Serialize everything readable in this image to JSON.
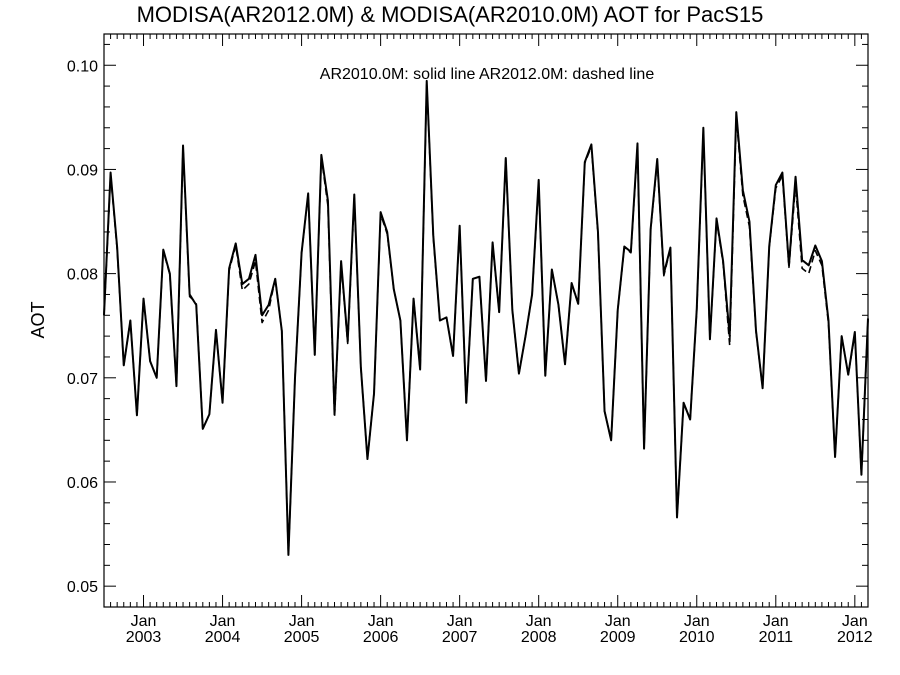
{
  "chart_data": {
    "type": "line",
    "title": "MODISA(AR2012.0M) & MODISA(AR2010.0M)  AOT for PacS15",
    "ylabel": "AOT",
    "xlabel": "",
    "annotation": "AR2010.0M: solid line   AR2012.0M: dashed line",
    "xlim": [
      "2002-07",
      "2012-03"
    ],
    "ylim": [
      0.048,
      0.103
    ],
    "grid": false,
    "legend": "none",
    "y_ticks": [
      "0.05",
      "0.06",
      "0.07",
      "0.08",
      "0.09",
      "0.10"
    ],
    "x_ticks": [
      {
        "month": "Jan",
        "year": "2003"
      },
      {
        "month": "Jan",
        "year": "2004"
      },
      {
        "month": "Jan",
        "year": "2005"
      },
      {
        "month": "Jan",
        "year": "2006"
      },
      {
        "month": "Jan",
        "year": "2007"
      },
      {
        "month": "Jan",
        "year": "2008"
      },
      {
        "month": "Jan",
        "year": "2009"
      },
      {
        "month": "Jan",
        "year": "2010"
      },
      {
        "month": "Jan",
        "year": "2011"
      },
      {
        "month": "Jan",
        "year": "2012"
      }
    ],
    "series": [
      {
        "name": "AR2010.0M",
        "style": "solid",
        "color": "#000000",
        "x": [
          "2002-07",
          "2002-08",
          "2002-09",
          "2002-10",
          "2002-11",
          "2002-12",
          "2003-01",
          "2003-02",
          "2003-03",
          "2003-04",
          "2003-05",
          "2003-06",
          "2003-07",
          "2003-08",
          "2003-09",
          "2003-10",
          "2003-11",
          "2003-12",
          "2004-01",
          "2004-02",
          "2004-03",
          "2004-04",
          "2004-05",
          "2004-06",
          "2004-07",
          "2004-08",
          "2004-09",
          "2004-10",
          "2004-11",
          "2004-12",
          "2005-01",
          "2005-02",
          "2005-03",
          "2005-04",
          "2005-05",
          "2005-06",
          "2005-07",
          "2005-08",
          "2005-09",
          "2005-10",
          "2005-11",
          "2005-12",
          "2006-01",
          "2006-02",
          "2006-03",
          "2006-04",
          "2006-05",
          "2006-06",
          "2006-07",
          "2006-08",
          "2006-09",
          "2006-10",
          "2006-11",
          "2006-12",
          "2007-01",
          "2007-02",
          "2007-03",
          "2007-04",
          "2007-05",
          "2007-06",
          "2007-07",
          "2007-08",
          "2007-09",
          "2007-10",
          "2007-11",
          "2007-12",
          "2008-01",
          "2008-02",
          "2008-03",
          "2008-04",
          "2008-05",
          "2008-06",
          "2008-07",
          "2008-08",
          "2008-09",
          "2008-10",
          "2008-11",
          "2008-12",
          "2009-01",
          "2009-02",
          "2009-03",
          "2009-04",
          "2009-05",
          "2009-06",
          "2009-07",
          "2009-08",
          "2009-09",
          "2009-10",
          "2009-11",
          "2009-12",
          "2010-01",
          "2010-02",
          "2010-03",
          "2010-04",
          "2010-05",
          "2010-06",
          "2010-07",
          "2010-08",
          "2010-09",
          "2010-10",
          "2010-11",
          "2010-12",
          "2011-01",
          "2011-02",
          "2011-03",
          "2011-04",
          "2011-05",
          "2011-06",
          "2011-07",
          "2011-08",
          "2011-09",
          "2011-10",
          "2011-11",
          "2011-12",
          "2012-01",
          "2012-02",
          "2012-03"
        ],
        "values": [
          0.076,
          0.0897,
          0.0825,
          0.0712,
          0.0755,
          0.0664,
          0.0776,
          0.0716,
          0.07,
          0.0823,
          0.08,
          0.0692,
          0.0923,
          0.078,
          0.077,
          0.0651,
          0.0665,
          0.0746,
          0.0676,
          0.0805,
          0.0829,
          0.079,
          0.0795,
          0.0818,
          0.076,
          0.077,
          0.0795,
          0.0745,
          0.053,
          0.07,
          0.082,
          0.0877,
          0.0722,
          0.0914,
          0.087,
          0.0665,
          0.0812,
          0.0735,
          0.0876,
          0.071,
          0.0622,
          0.0685,
          0.0859,
          0.084,
          0.0785,
          0.0755,
          0.064,
          0.0776,
          0.0708,
          0.0985,
          0.0836,
          0.0755,
          0.0758,
          0.0721,
          0.0846,
          0.0676,
          0.0795,
          0.0797,
          0.0697,
          0.083,
          0.0763,
          0.0911,
          0.0765,
          0.0704,
          0.074,
          0.078,
          0.089,
          0.0702,
          0.0804,
          0.077,
          0.0713,
          0.0791,
          0.0771,
          0.0907,
          0.0924,
          0.084,
          0.0668,
          0.064,
          0.0765,
          0.0826,
          0.0821,
          0.0925,
          0.0632,
          0.0843,
          0.091,
          0.08,
          0.0825,
          0.0566,
          0.0676,
          0.066,
          0.0766,
          0.094,
          0.0737,
          0.0853,
          0.0812,
          0.074,
          0.0955,
          0.088,
          0.085,
          0.0745,
          0.069,
          0.0826,
          0.0885,
          0.0897,
          0.0808,
          0.0893,
          0.0813,
          0.0808,
          0.0827,
          0.0812,
          0.0755,
          0.0624,
          0.074,
          0.0703,
          0.0744,
          0.0607,
          0.0757
        ]
      },
      {
        "name": "AR2012.0M",
        "style": "dashed",
        "color": "#000000",
        "x": [
          "2002-07",
          "2002-08",
          "2002-09",
          "2002-10",
          "2002-11",
          "2002-12",
          "2003-01",
          "2003-02",
          "2003-03",
          "2003-04",
          "2003-05",
          "2003-06",
          "2003-07",
          "2003-08",
          "2003-09",
          "2003-10",
          "2003-11",
          "2003-12",
          "2004-01",
          "2004-02",
          "2004-03",
          "2004-04",
          "2004-05",
          "2004-06",
          "2004-07",
          "2004-08",
          "2004-09",
          "2004-10",
          "2004-11",
          "2004-12",
          "2005-01",
          "2005-02",
          "2005-03",
          "2005-04",
          "2005-05",
          "2005-06",
          "2005-07",
          "2005-08",
          "2005-09",
          "2005-10",
          "2005-11",
          "2005-12",
          "2006-01",
          "2006-02",
          "2006-03",
          "2006-04",
          "2006-05",
          "2006-06",
          "2006-07",
          "2006-08",
          "2006-09",
          "2006-10",
          "2006-11",
          "2006-12",
          "2007-01",
          "2007-02",
          "2007-03",
          "2007-04",
          "2007-05",
          "2007-06",
          "2007-07",
          "2007-08",
          "2007-09",
          "2007-10",
          "2007-11",
          "2007-12",
          "2008-01",
          "2008-02",
          "2008-03",
          "2008-04",
          "2008-05",
          "2008-06",
          "2008-07",
          "2008-08",
          "2008-09",
          "2008-10",
          "2008-11",
          "2008-12",
          "2009-01",
          "2009-02",
          "2009-03",
          "2009-04",
          "2009-05",
          "2009-06",
          "2009-07",
          "2009-08",
          "2009-09",
          "2009-10",
          "2009-11",
          "2009-12",
          "2010-01",
          "2010-02",
          "2010-03",
          "2010-04",
          "2010-05",
          "2010-06",
          "2010-07",
          "2010-08",
          "2010-09",
          "2010-10",
          "2010-11",
          "2010-12",
          "2011-01",
          "2011-02",
          "2011-03",
          "2011-04",
          "2011-05",
          "2011-06",
          "2011-07",
          "2011-08",
          "2011-09",
          "2011-10",
          "2011-11",
          "2011-12",
          "2012-01",
          "2012-02",
          "2012-03"
        ],
        "values": [
          0.076,
          0.0895,
          0.0823,
          0.0712,
          0.0755,
          0.0664,
          0.0776,
          0.0716,
          0.07,
          0.0822,
          0.0799,
          0.0692,
          0.0921,
          0.0778,
          0.0772,
          0.0651,
          0.0665,
          0.0746,
          0.0676,
          0.0803,
          0.0827,
          0.0784,
          0.079,
          0.0812,
          0.0753,
          0.0765,
          0.0795,
          0.0745,
          0.053,
          0.07,
          0.082,
          0.0876,
          0.0722,
          0.0912,
          0.0865,
          0.0662,
          0.081,
          0.0733,
          0.0873,
          0.071,
          0.0622,
          0.0685,
          0.0857,
          0.0838,
          0.0785,
          0.0755,
          0.064,
          0.0776,
          0.0708,
          0.0983,
          0.0834,
          0.0755,
          0.0758,
          0.0721,
          0.0844,
          0.0676,
          0.0795,
          0.0797,
          0.0697,
          0.0829,
          0.0763,
          0.091,
          0.0765,
          0.0704,
          0.074,
          0.078,
          0.0888,
          0.0702,
          0.0804,
          0.077,
          0.0713,
          0.079,
          0.0771,
          0.0906,
          0.0922,
          0.0838,
          0.0668,
          0.064,
          0.0765,
          0.0825,
          0.082,
          0.0923,
          0.0632,
          0.0842,
          0.0908,
          0.0798,
          0.0824,
          0.0566,
          0.0676,
          0.066,
          0.0765,
          0.0937,
          0.0737,
          0.0851,
          0.081,
          0.0731,
          0.095,
          0.0875,
          0.0845,
          0.0744,
          0.069,
          0.0825,
          0.0882,
          0.0894,
          0.0806,
          0.0885,
          0.0805,
          0.08,
          0.0822,
          0.0808,
          0.0752,
          0.0624,
          0.074,
          0.0703,
          0.0742,
          0.0607,
          0.0756
        ]
      }
    ]
  }
}
